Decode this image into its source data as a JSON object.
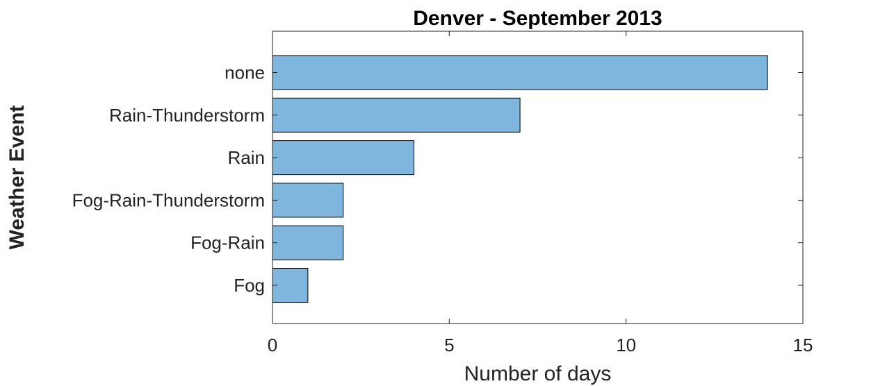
{
  "chart_data": {
    "type": "bar",
    "orientation": "horizontal",
    "title": "Denver - September 2013",
    "xlabel": "Number of days",
    "ylabel": "Weather Event",
    "categories": [
      "Fog",
      "Fog-Rain",
      "Fog-Rain-Thunderstorm",
      "Rain",
      "Rain-Thunderstorm",
      "none"
    ],
    "values": [
      1,
      2,
      2,
      4,
      7,
      14
    ],
    "xlim": [
      0,
      15
    ],
    "xticks": [
      "0",
      "5",
      "10",
      "15"
    ],
    "bar_color": "#7EB6DE",
    "grid": false,
    "legend": false
  }
}
